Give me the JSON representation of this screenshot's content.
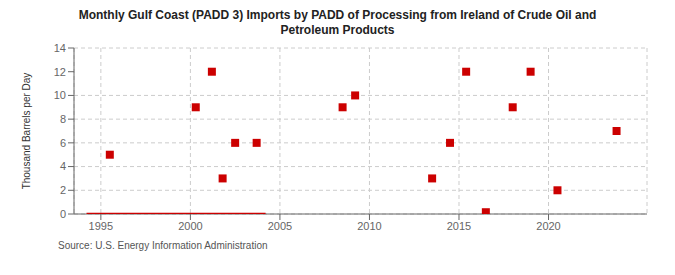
{
  "chart_data": {
    "type": "scatter",
    "title": "Monthly Gulf Coast (PADD 3) Imports by PADD of Processing from Ireland of Crude Oil and\nPetroleum Products",
    "y_label": "Thousand Barrels per Day",
    "source": "Source: U.S. Energy Information Administration",
    "xlim": [
      1993.5,
      2025.5
    ],
    "ylim": [
      0,
      14
    ],
    "xticks": [
      1995,
      2000,
      2005,
      2010,
      2015,
      2020
    ],
    "yticks": [
      0,
      2,
      4,
      6,
      8,
      10,
      12,
      14
    ],
    "grid": true,
    "series": [
      {
        "type": "line",
        "color": "#cc0000",
        "line_style": "solid",
        "x": [
          1994.2,
          2004.2
        ],
        "values": [
          0,
          0
        ]
      },
      {
        "type": "scatter",
        "color": "#cc0000",
        "marker": "square",
        "x": [
          1995.5,
          2000.3,
          2001.2,
          2001.8,
          2002.5,
          2003.7,
          2008.5,
          2009.2,
          2013.5,
          2014.5,
          2015.4,
          2016.5,
          2018.0,
          2019.0,
          2020.5,
          2023.8
        ],
        "values": [
          5,
          9,
          12,
          3,
          6,
          6,
          9,
          10,
          3,
          6,
          12,
          0.15,
          9,
          12,
          2,
          7
        ]
      }
    ]
  }
}
